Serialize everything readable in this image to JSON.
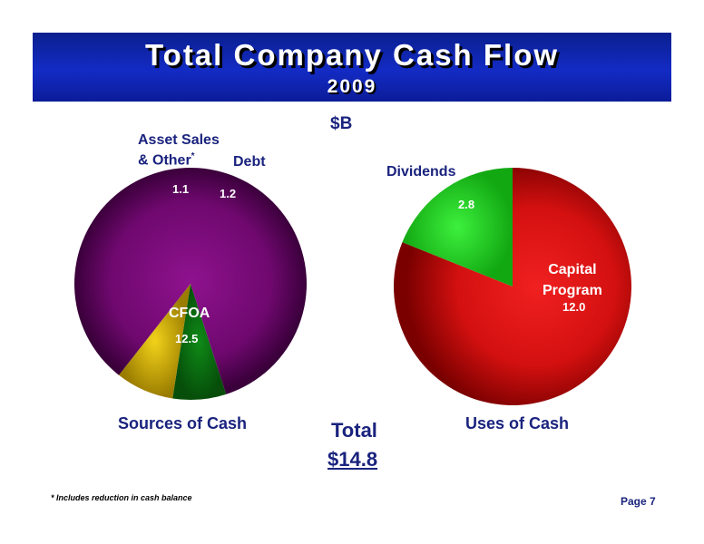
{
  "header": {
    "title": "Total Company Cash Flow",
    "year": "2009"
  },
  "unit_label": "$B",
  "chart_data": [
    {
      "type": "pie",
      "title": "Sources of Cash",
      "labels": [
        "CFOA",
        "Asset Sales & Other*",
        "Debt"
      ],
      "values": [
        12.5,
        1.1,
        1.2
      ],
      "value_labels": [
        "12.5",
        "1.1",
        "1.2"
      ],
      "colors": [
        "#7a0a7a",
        "#0a6a12",
        "#c8a800"
      ]
    },
    {
      "type": "pie",
      "title": "Uses of Cash",
      "labels": [
        "Capital Program",
        "Dividends"
      ],
      "values": [
        12.0,
        2.8
      ],
      "value_labels": [
        "12.0",
        "2.8"
      ],
      "colors": [
        "#d81010",
        "#1fd41f"
      ]
    }
  ],
  "labels": {
    "asset_sales_line1": "Asset Sales",
    "asset_sales_line2": "& Other",
    "asset_sales_star": "*",
    "debt": "Debt",
    "cfoa": "CFOA",
    "dividends": "Dividends",
    "capital_line1": "Capital",
    "capital_line2": "Program"
  },
  "total": {
    "label": "Total",
    "value": "$14.8"
  },
  "footnote": "* Includes reduction in cash balance",
  "page": "Page 7"
}
